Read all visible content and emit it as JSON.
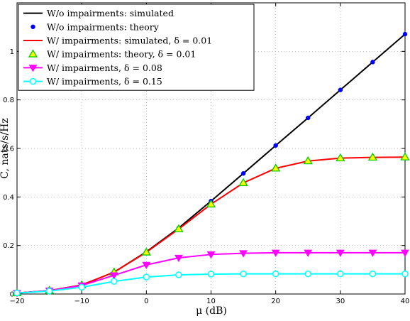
{
  "chart_data": {
    "type": "line",
    "xlabel": "μ (dB)",
    "ylabel": "C, nats/s/Hz",
    "xlim": [
      -20,
      40
    ],
    "ylim": [
      0,
      1.2
    ],
    "xticks": [
      -20,
      -10,
      0,
      10,
      20,
      30,
      40
    ],
    "yticks": [
      0,
      0.2,
      0.4,
      0.6,
      0.8,
      1
    ],
    "xtick_labels": [
      "−20",
      "−10",
      "0",
      "10",
      "20",
      "30",
      "40"
    ],
    "ytick_labels": [
      "0",
      "0.2",
      "0.4",
      "0.6",
      "0.8",
      "1"
    ],
    "grid": true,
    "legend_position": "top-left",
    "series": [
      {
        "name": "W/o impairments: simulated",
        "style": "line",
        "color": "#000000",
        "x": [
          -20,
          -15,
          -10,
          -5,
          0,
          5,
          10,
          15,
          20,
          25,
          30,
          35,
          40
        ],
        "values": [
          0.004,
          0.014,
          0.037,
          0.09,
          0.174,
          0.272,
          0.383,
          0.497,
          0.612,
          0.726,
          0.841,
          0.956,
          1.071
        ]
      },
      {
        "name": "W/o impairments: theory",
        "style": "marker",
        "marker": "dot",
        "color": "#0000ff",
        "x": [
          -20,
          -15,
          -10,
          -5,
          0,
          5,
          10,
          15,
          20,
          25,
          30,
          35,
          40
        ],
        "values": [
          0.004,
          0.014,
          0.037,
          0.09,
          0.174,
          0.272,
          0.383,
          0.497,
          0.612,
          0.726,
          0.841,
          0.956,
          1.071
        ]
      },
      {
        "name": "W/ impairments: simulated, δ = 0.01",
        "style": "line",
        "color": "#ff0000",
        "x": [
          -20,
          -15,
          -10,
          -5,
          0,
          5,
          10,
          15,
          20,
          25,
          30,
          35,
          40
        ],
        "values": [
          0.004,
          0.014,
          0.037,
          0.09,
          0.172,
          0.268,
          0.37,
          0.458,
          0.518,
          0.548,
          0.56,
          0.563,
          0.564
        ]
      },
      {
        "name": "W/ impairments: theory, δ = 0.01",
        "style": "marker",
        "marker": "triangle-up",
        "color": "#00cc00",
        "x": [
          -20,
          -15,
          -10,
          -5,
          0,
          5,
          10,
          15,
          20,
          25,
          30,
          35,
          40
        ],
        "values": [
          0.004,
          0.014,
          0.037,
          0.09,
          0.172,
          0.268,
          0.37,
          0.458,
          0.518,
          0.548,
          0.56,
          0.563,
          0.564
        ]
      },
      {
        "name": "W/ impairments, δ = 0.08",
        "style": "line+marker",
        "marker": "triangle-down",
        "color": "#ff00ff",
        "x": [
          -20,
          -15,
          -10,
          -5,
          0,
          5,
          10,
          15,
          20,
          25,
          30,
          35,
          40
        ],
        "values": [
          0.004,
          0.014,
          0.035,
          0.077,
          0.12,
          0.149,
          0.163,
          0.168,
          0.17,
          0.17,
          0.17,
          0.17,
          0.17
        ]
      },
      {
        "name": "W/ impairments, δ = 0.15",
        "style": "line+marker",
        "marker": "circle-open",
        "color": "#00ffff",
        "x": [
          -20,
          -15,
          -10,
          -5,
          0,
          5,
          10,
          15,
          20,
          25,
          30,
          35,
          40
        ],
        "values": [
          0.004,
          0.012,
          0.028,
          0.052,
          0.07,
          0.079,
          0.082,
          0.083,
          0.083,
          0.083,
          0.083,
          0.083,
          0.083
        ]
      }
    ]
  }
}
